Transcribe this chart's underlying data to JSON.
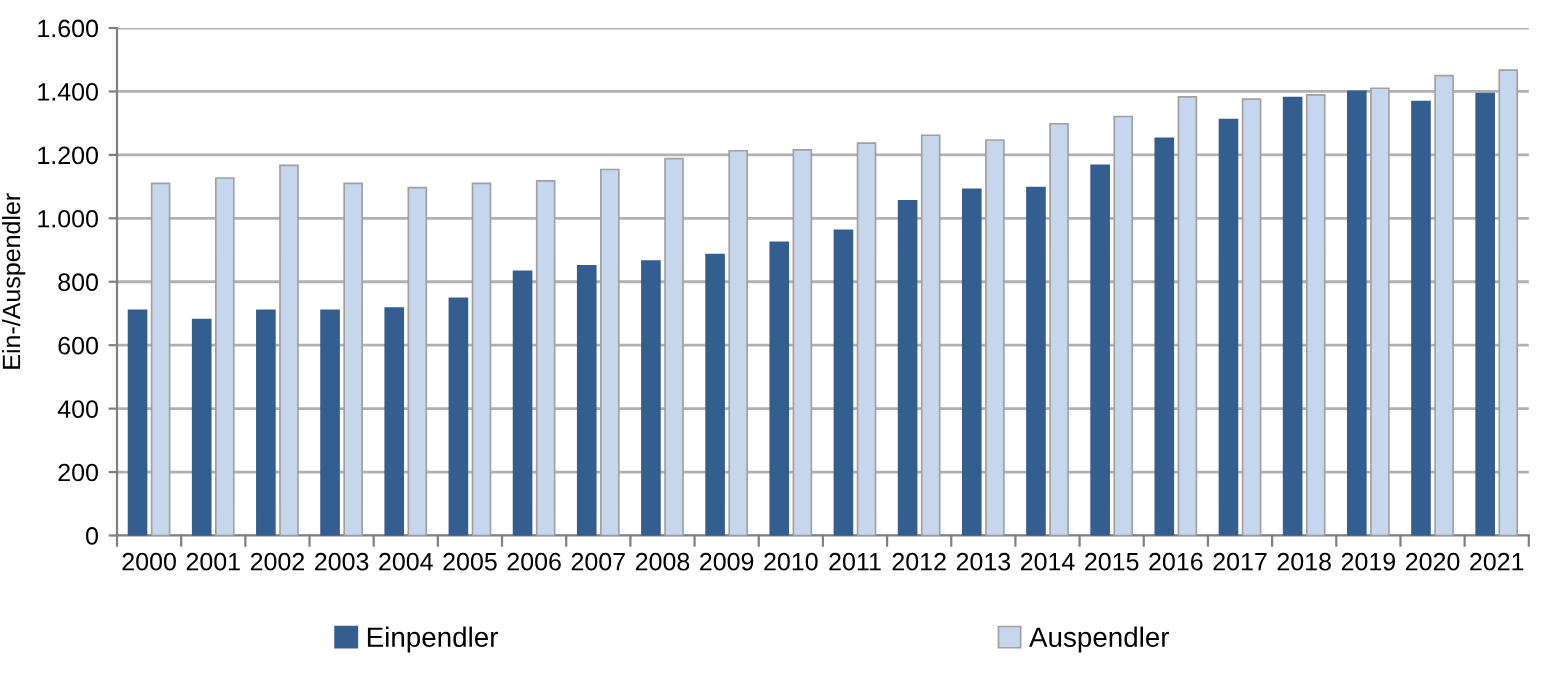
{
  "chart_data": {
    "type": "bar",
    "ylabel": "Ein-/Auspendler",
    "categories": [
      "2000",
      "2001",
      "2002",
      "2003",
      "2004",
      "2005",
      "2006",
      "2007",
      "2008",
      "2009",
      "2010",
      "2011",
      "2012",
      "2013",
      "2014",
      "2015",
      "2016",
      "2017",
      "2018",
      "2019",
      "2020",
      "2021"
    ],
    "series": [
      {
        "name": "Einpendler",
        "color": "#345e8f",
        "values": [
          710,
          681,
          710,
          710,
          717,
          748,
          833,
          850,
          865,
          886,
          924,
          962,
          1055,
          1091,
          1097,
          1167,
          1252,
          1311,
          1381,
          1400,
          1368,
          1393
        ]
      },
      {
        "name": "Auspendler",
        "color": "#c6d6ec",
        "values": [
          1110,
          1127,
          1167,
          1110,
          1097,
          1110,
          1118,
          1154,
          1188,
          1213,
          1216,
          1237,
          1262,
          1247,
          1298,
          1321,
          1383,
          1376,
          1389,
          1410,
          1450,
          1467
        ]
      }
    ],
    "ylim": [
      0,
      1600
    ],
    "yticks": [
      0,
      200,
      400,
      600,
      800,
      {
        "value": 1000,
        "label": "1.000"
      },
      {
        "value": 1200,
        "label": "1.200"
      },
      {
        "value": 1400,
        "label": "1.400"
      },
      {
        "value": 1600,
        "label": "1.600"
      }
    ],
    "grid": "y",
    "legend": "bottom"
  }
}
